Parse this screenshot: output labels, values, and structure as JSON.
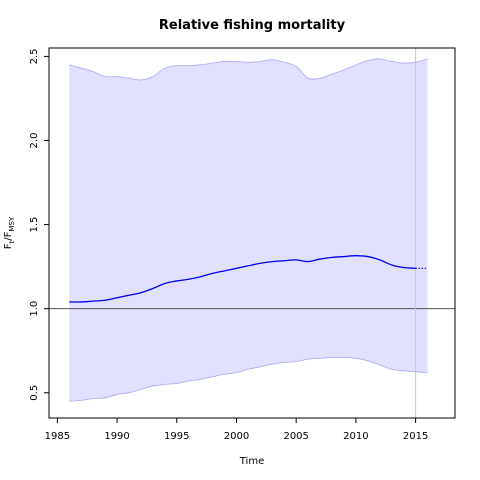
{
  "chart_data": {
    "type": "line",
    "title": "Relative fishing mortality",
    "xlabel": "Time",
    "ylabel_main": "F",
    "ylabel_sub1": "t",
    "ylabel_mid": "/F",
    "ylabel_sub2": "MSY",
    "xlim": [
      1984.3,
      2018.3
    ],
    "ylim": [
      0.35,
      2.55
    ],
    "x_ticks": [
      1985,
      1990,
      1995,
      2000,
      2005,
      2010,
      2015
    ],
    "x_tick_labels": [
      "1985",
      "1990",
      "1995",
      "2000",
      "2005",
      "2010",
      "2015"
    ],
    "y_ticks": [
      0.5,
      1.0,
      1.5,
      2.0,
      2.5
    ],
    "y_tick_labels": [
      "0.5",
      "1.0",
      "1.5",
      "2.0",
      "2.5"
    ],
    "reference_line_y": 1.0,
    "vertical_line_x": 2015,
    "x": [
      1986,
      1987,
      1988,
      1989,
      1990,
      1991,
      1992,
      1993,
      1994,
      1995,
      1996,
      1997,
      1998,
      1999,
      2000,
      2001,
      2002,
      2003,
      2004,
      2005,
      2006,
      2007,
      2008,
      2009,
      2010,
      2011,
      2012,
      2013,
      2014,
      2015
    ],
    "series": [
      {
        "values": [
          1.04,
          1.04,
          1.045,
          1.05,
          1.065,
          1.08,
          1.095,
          1.12,
          1.15,
          1.165,
          1.175,
          1.19,
          1.21,
          1.225,
          1.24,
          1.255,
          1.27,
          1.28,
          1.285,
          1.29,
          1.28,
          1.295,
          1.305,
          1.31,
          1.315,
          1.31,
          1.29,
          1.26,
          1.245,
          1.24
        ]
      }
    ],
    "projection": {
      "x": [
        2015,
        2016
      ],
      "values": [
        1.24,
        1.24
      ]
    },
    "band_upper": {
      "x": [
        1986,
        1987,
        1988,
        1989,
        1990,
        1991,
        1992,
        1993,
        1994,
        1995,
        1996,
        1997,
        1998,
        1999,
        2000,
        2001,
        2002,
        2003,
        2004,
        2005,
        2006,
        2007,
        2008,
        2009,
        2010,
        2011,
        2012,
        2013,
        2014,
        2015,
        2016
      ],
      "values": [
        2.45,
        2.43,
        2.41,
        2.38,
        2.38,
        2.37,
        2.36,
        2.38,
        2.43,
        2.445,
        2.445,
        2.45,
        2.46,
        2.47,
        2.47,
        2.465,
        2.47,
        2.48,
        2.465,
        2.44,
        2.37,
        2.37,
        2.395,
        2.42,
        2.45,
        2.475,
        2.485,
        2.47,
        2.46,
        2.465,
        2.485
      ]
    },
    "band_lower": {
      "x": [
        1986,
        1987,
        1988,
        1989,
        1990,
        1991,
        1992,
        1993,
        1994,
        1995,
        1996,
        1997,
        1998,
        1999,
        2000,
        2001,
        2002,
        2003,
        2004,
        2005,
        2006,
        2007,
        2008,
        2009,
        2010,
        2011,
        2012,
        2013,
        2014,
        2015,
        2016
      ],
      "values": [
        0.45,
        0.455,
        0.465,
        0.47,
        0.49,
        0.5,
        0.52,
        0.54,
        0.55,
        0.555,
        0.57,
        0.58,
        0.595,
        0.61,
        0.62,
        0.64,
        0.655,
        0.67,
        0.68,
        0.685,
        0.7,
        0.705,
        0.71,
        0.71,
        0.705,
        0.69,
        0.665,
        0.64,
        0.63,
        0.625,
        0.62
      ]
    },
    "colors": {
      "line": "#0000ee",
      "band_fill": "#e1e1ff",
      "band_edge": "#a8a8f0",
      "reference_line": "#555555",
      "vertical_line": "#c8c8c8"
    },
    "grid": false
  }
}
